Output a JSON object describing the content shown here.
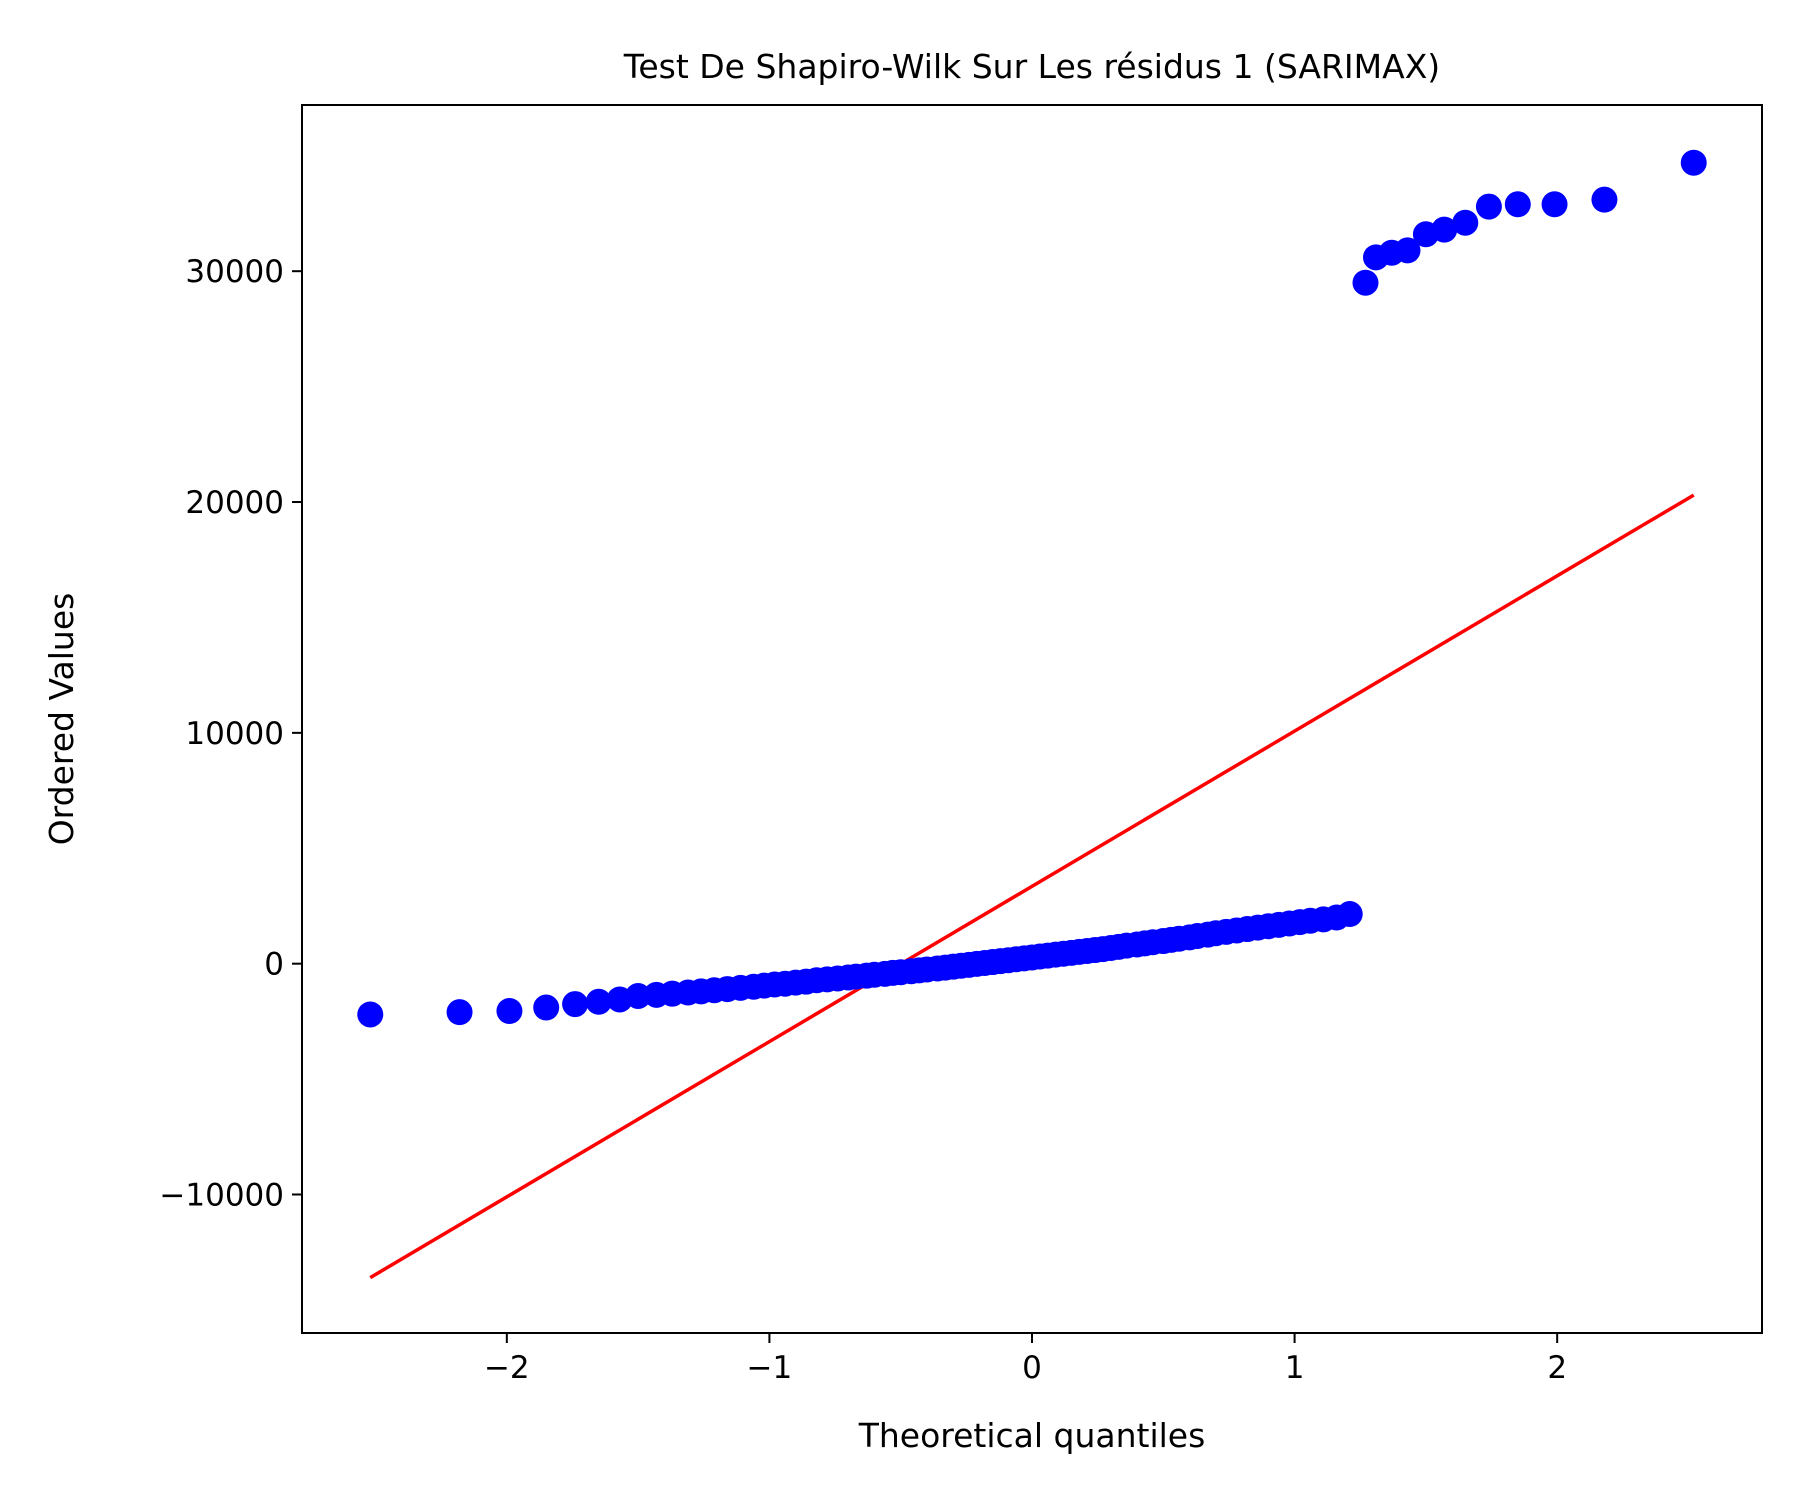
{
  "chart_data": {
    "type": "scatter",
    "title": "Test De Shapiro-Wilk Sur Les résidus 1 (SARIMAX)",
    "xlabel": "Theoretical quantiles",
    "ylabel": "Ordered Values",
    "xlim": [
      -2.78,
      2.78
    ],
    "ylim": [
      -16000,
      37200
    ],
    "xticks": [
      -2,
      -1,
      0,
      1,
      2
    ],
    "xtick_labels": [
      "−2",
      "−1",
      "0",
      "1",
      "2"
    ],
    "yticks": [
      -10000,
      0,
      10000,
      20000,
      30000
    ],
    "ytick_labels": [
      "−10000",
      "0",
      "10000",
      "20000",
      "30000"
    ],
    "grid": false,
    "legend": "none",
    "colors": {
      "points": "#0000ff",
      "fit_line": "#ff0000",
      "frame": "#000000"
    },
    "series": [
      {
        "kind": "points",
        "x": [
          -2.52,
          -2.18,
          -1.99,
          -1.85,
          -1.74,
          -1.65,
          -1.57,
          -1.5,
          -1.43,
          -1.37,
          -1.31,
          -1.26,
          -1.21,
          -1.16,
          -1.11,
          -1.06,
          -1.02,
          -0.98,
          -0.94,
          -0.9,
          -0.86,
          -0.82,
          -0.78,
          -0.74,
          -0.7,
          -0.67,
          -0.63,
          -0.6,
          -0.56,
          -0.53,
          -0.5,
          -0.46,
          -0.43,
          -0.4,
          -0.36,
          -0.33,
          -0.3,
          -0.27,
          -0.24,
          -0.21,
          -0.18,
          -0.15,
          -0.12,
          -0.09,
          -0.06,
          -0.03,
          0.0,
          0.03,
          0.06,
          0.09,
          0.12,
          0.15,
          0.18,
          0.21,
          0.24,
          0.27,
          0.3,
          0.33,
          0.36,
          0.4,
          0.43,
          0.46,
          0.5,
          0.53,
          0.56,
          0.6,
          0.63,
          0.67,
          0.7,
          0.74,
          0.78,
          0.82,
          0.86,
          0.9,
          0.94,
          0.98,
          1.02,
          1.06,
          1.11,
          1.16,
          1.21,
          1.27,
          1.31,
          1.37,
          1.43,
          1.5,
          1.57,
          1.65,
          1.74,
          1.85,
          1.99,
          2.18,
          2.52
        ],
        "y": [
          -2200,
          -2100,
          -2050,
          -1900,
          -1750,
          -1650,
          -1550,
          -1400,
          -1350,
          -1300,
          -1250,
          -1200,
          -1150,
          -1100,
          -1050,
          -1000,
          -950,
          -900,
          -870,
          -820,
          -780,
          -720,
          -680,
          -640,
          -600,
          -560,
          -520,
          -480,
          -440,
          -400,
          -370,
          -330,
          -290,
          -250,
          -210,
          -170,
          -130,
          -90,
          -50,
          -10,
          30,
          70,
          110,
          150,
          190,
          230,
          270,
          310,
          350,
          390,
          430,
          470,
          510,
          550,
          590,
          630,
          680,
          730,
          780,
          830,
          880,
          930,
          980,
          1030,
          1080,
          1140,
          1200,
          1260,
          1320,
          1380,
          1440,
          1500,
          1560,
          1620,
          1680,
          1740,
          1800,
          1860,
          1920,
          2000,
          2150,
          29500,
          30600,
          30800,
          30900,
          31600,
          31800,
          32100,
          32800,
          32900,
          32900,
          33100,
          34700
        ]
      },
      {
        "kind": "line",
        "x": [
          -2.52,
          2.52
        ],
        "y": [
          -13600,
          20300
        ]
      }
    ]
  }
}
